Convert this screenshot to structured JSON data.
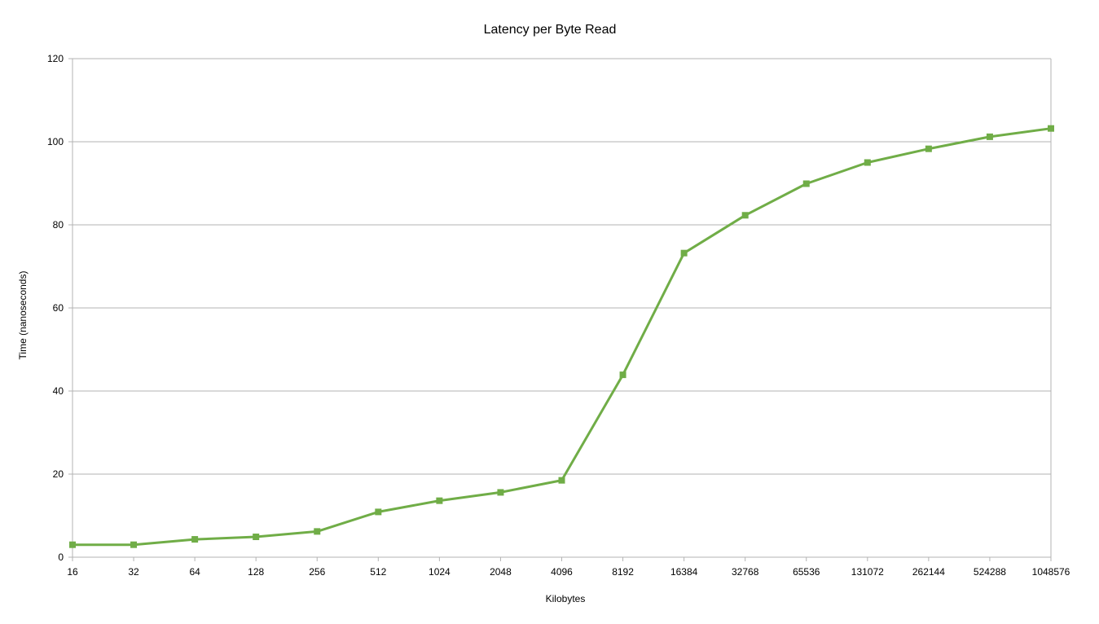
{
  "chart_data": {
    "type": "line",
    "title": "Latency per Byte Read",
    "xlabel": "Kilobytes",
    "ylabel": "Time (nanoseconds)",
    "categories": [
      "16",
      "32",
      "64",
      "128",
      "256",
      "512",
      "1024",
      "2048",
      "4096",
      "8192",
      "16384",
      "32768",
      "65536",
      "131072",
      "262144",
      "524288",
      "1048576"
    ],
    "ylim": [
      0,
      120
    ],
    "yticks": [
      0,
      20,
      40,
      60,
      80,
      100,
      120
    ],
    "grid": true,
    "legend": "none",
    "series": [
      {
        "values": [
          3.0,
          3.0,
          4.3,
          4.9,
          6.2,
          10.9,
          13.6,
          15.6,
          18.5,
          43.9,
          73.2,
          82.3,
          89.9,
          95.0,
          98.3,
          101.2,
          103.2
        ],
        "color": "#70ad47",
        "marker": "square"
      }
    ]
  }
}
